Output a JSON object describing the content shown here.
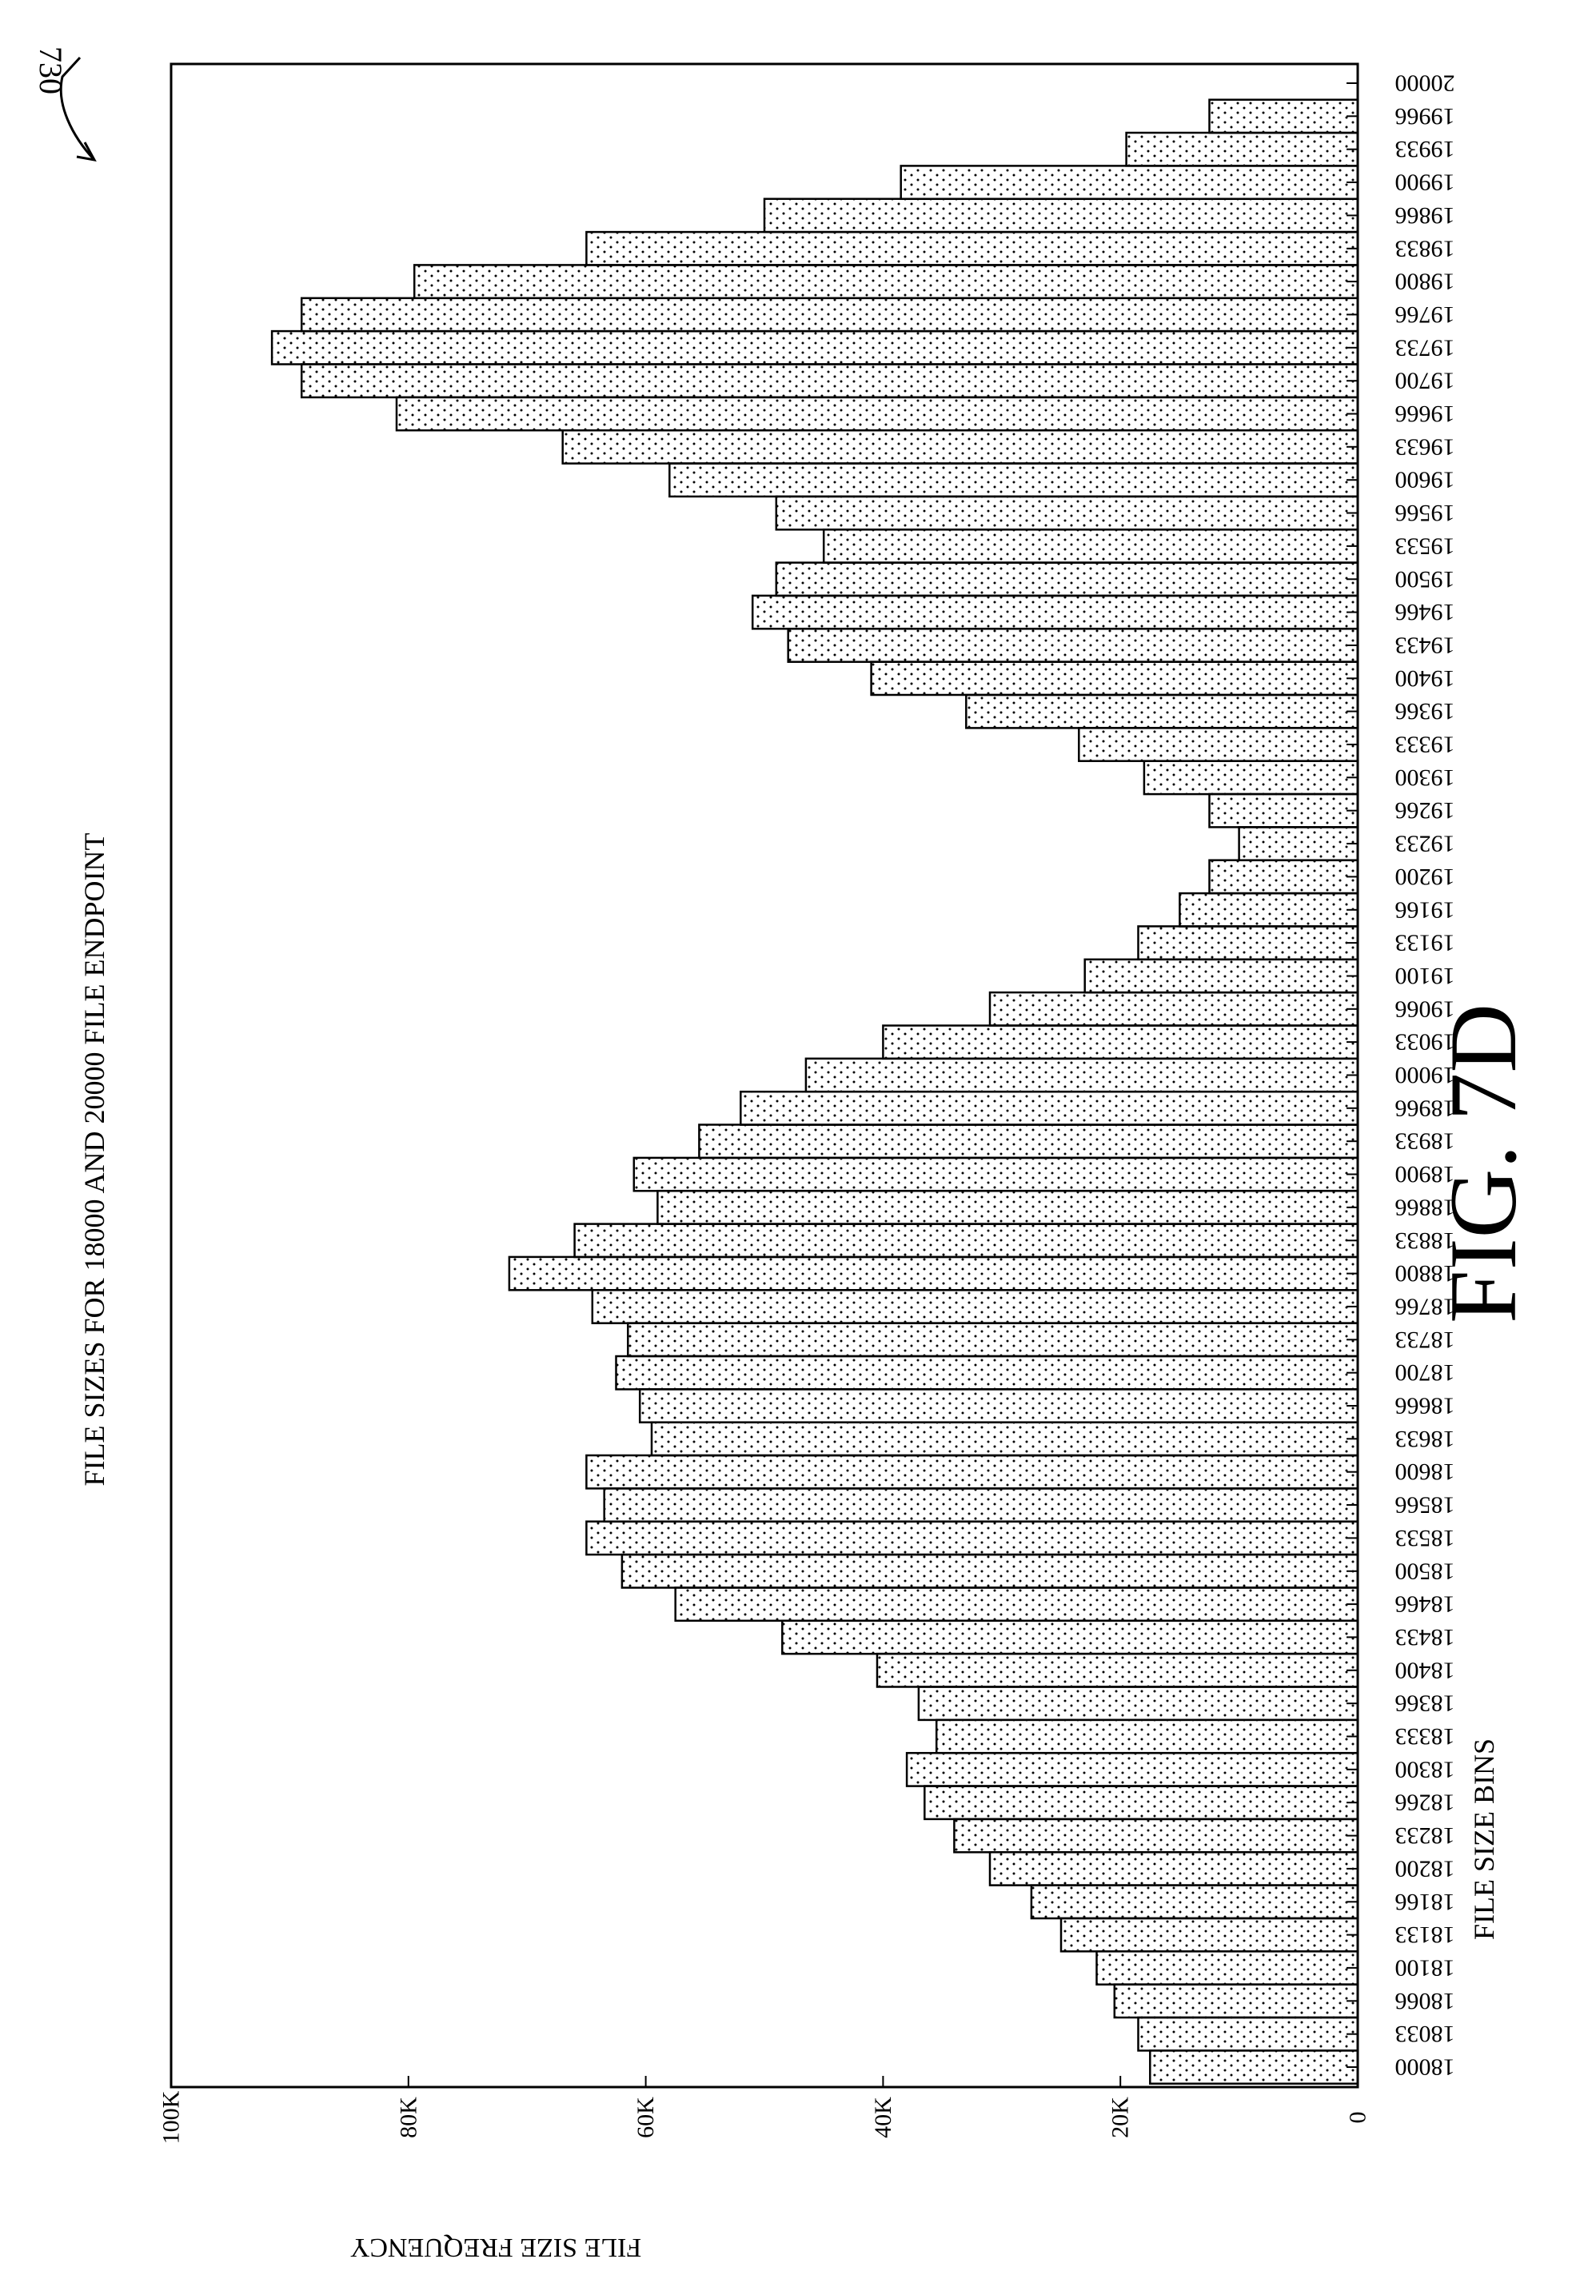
{
  "figure": {
    "reference_numeral": "730",
    "caption": "FIG. 7D"
  },
  "chart_data": {
    "type": "bar",
    "orientation": "horizontal",
    "title": "FILE SIZES FOR 18000 AND 20000 FILE ENDPOINT",
    "xlabel": "FILE SIZE BINS",
    "ylabel": "FILE SIZE FREQUENCY",
    "ylim": [
      0,
      100000
    ],
    "value_ticks": [
      {
        "value": 0,
        "label": "0"
      },
      {
        "value": 20000,
        "label": "20K"
      },
      {
        "value": 40000,
        "label": "40K"
      },
      {
        "value": 60000,
        "label": "60K"
      },
      {
        "value": 80000,
        "label": "80K"
      },
      {
        "value": 100000,
        "label": "100K"
      }
    ],
    "grid": false,
    "legend": "none",
    "bar_fill": "stippled",
    "categories": [
      "18000",
      "18033",
      "18066",
      "18100",
      "18133",
      "18166",
      "18200",
      "18233",
      "18266",
      "18300",
      "18333",
      "18366",
      "18400",
      "18433",
      "18466",
      "18500",
      "18533",
      "18566",
      "18600",
      "18633",
      "18666",
      "18700",
      "18733",
      "18766",
      "18800",
      "18833",
      "18866",
      "18900",
      "18933",
      "18966",
      "19000",
      "19033",
      "19066",
      "19100",
      "19133",
      "19166",
      "19200",
      "19233",
      "19266",
      "19300",
      "19333",
      "19366",
      "19400",
      "19433",
      "19466",
      "19500",
      "19533",
      "19566",
      "19600",
      "19633",
      "19666",
      "19700",
      "19733",
      "19766",
      "19800",
      "19833",
      "19866",
      "19900",
      "19933",
      "19966",
      "20000"
    ],
    "values": [
      17500,
      18500,
      20500,
      22000,
      25000,
      27500,
      31000,
      34000,
      36500,
      38000,
      35500,
      37000,
      40500,
      48500,
      57500,
      62000,
      65000,
      63500,
      65000,
      59500,
      60500,
      62500,
      61500,
      64500,
      71500,
      66000,
      59000,
      61000,
      55500,
      52000,
      46500,
      40000,
      31000,
      23000,
      18500,
      15000,
      12500,
      10000,
      12500,
      18000,
      23500,
      33000,
      41000,
      48000,
      51000,
      49000,
      45000,
      49000,
      58000,
      67000,
      81000,
      89000,
      91500,
      89000,
      79500,
      65000,
      50000,
      38500,
      19500,
      12500,
      0
    ]
  }
}
